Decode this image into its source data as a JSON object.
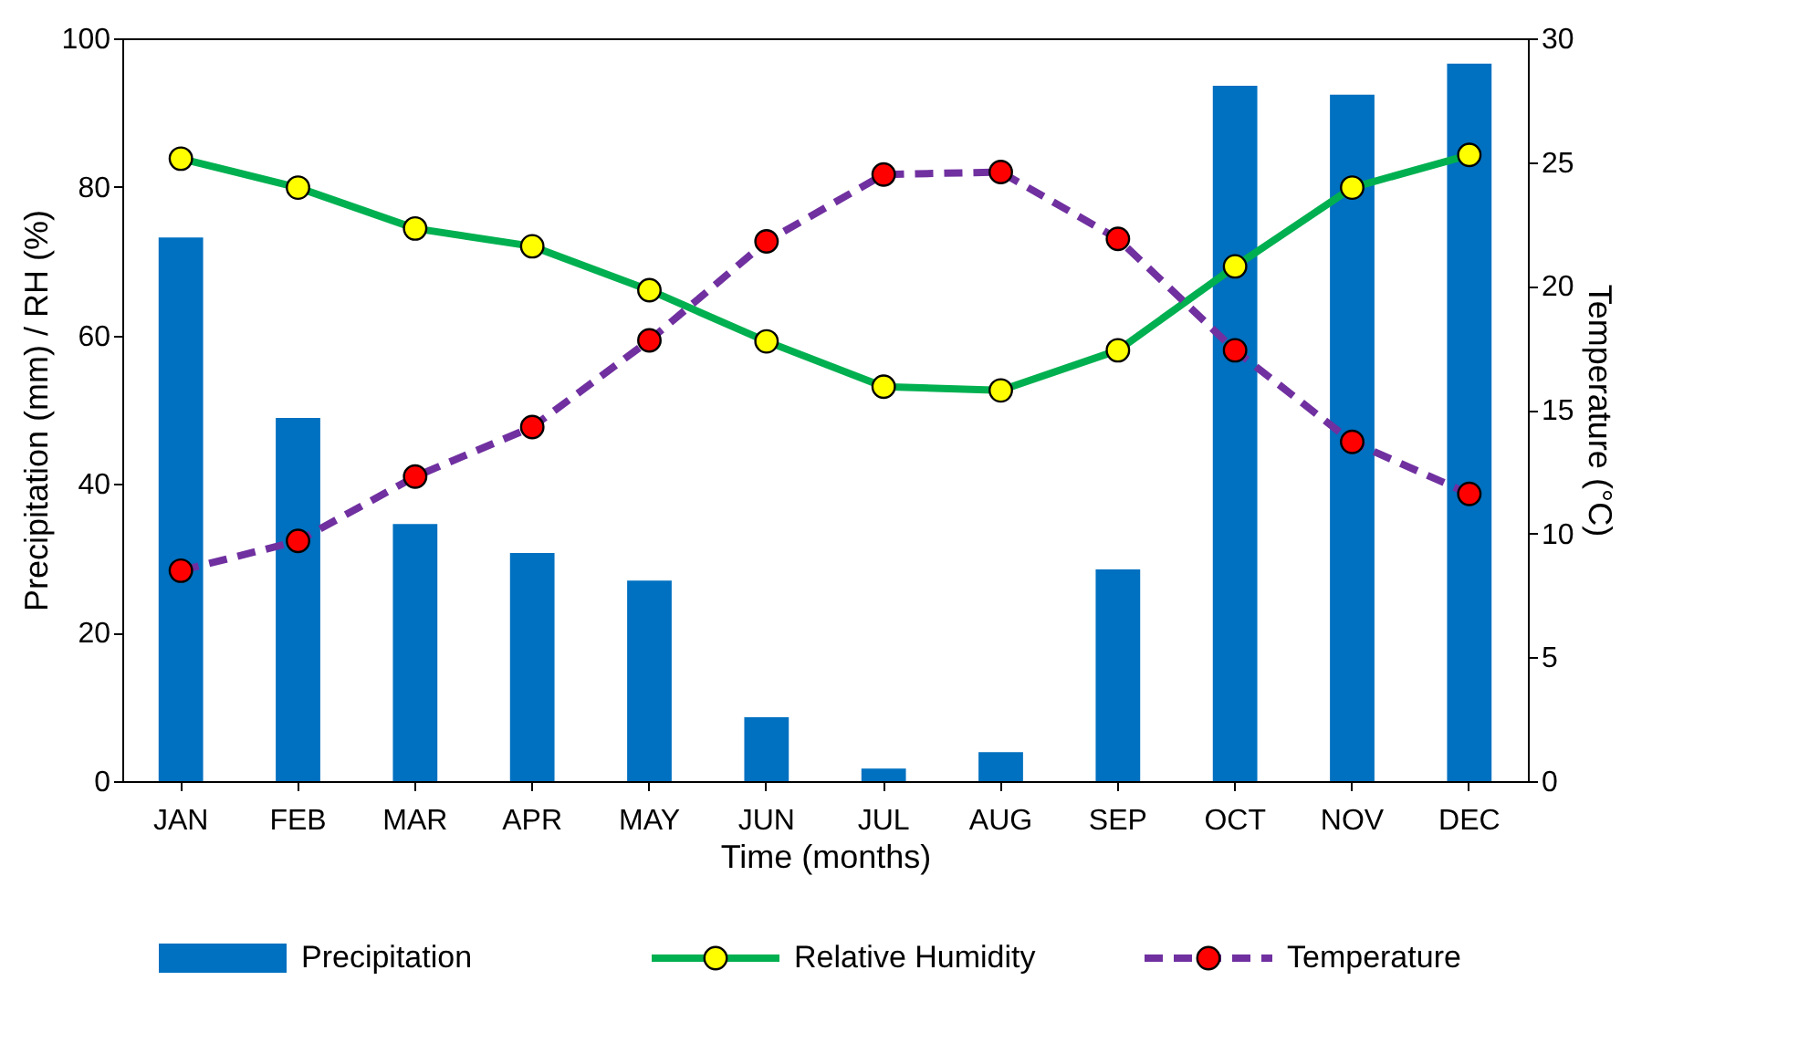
{
  "chart_data": {
    "type": "bar",
    "xlabel": "Time (months)",
    "ylabel": "Precipitation (mm) / RH (%)",
    "y2label": "Temperature (°C)",
    "categories": [
      "JAN",
      "FEB",
      "MAR",
      "APR",
      "MAY",
      "JUN",
      "JUL",
      "AUG",
      "SEP",
      "OCT",
      "NOV",
      "DEC"
    ],
    "series": [
      {
        "name": "Precipitation",
        "color": "#0070c0",
        "values": [
          73.2,
          48.9,
          34.6,
          30.7,
          27.0,
          8.6,
          1.7,
          3.9,
          28.5,
          93.6,
          92.4,
          96.6
        ]
      },
      {
        "name": "Relative Humidity",
        "type": "line",
        "color": "#00b050",
        "line_style": "solid",
        "marker": "circle",
        "values": [
          83.8,
          79.9,
          74.4,
          72.0,
          66.1,
          59.2,
          53.1,
          52.6,
          58.0,
          69.3,
          79.9,
          84.3
        ]
      },
      {
        "name": "Temperature",
        "type": "line",
        "axis": "y2",
        "color": "#7030a0",
        "line_style": "dashed",
        "marker": "circle",
        "values": [
          8.5,
          9.7,
          12.3,
          14.3,
          17.8,
          21.8,
          24.5,
          24.6,
          21.9,
          17.4,
          13.7,
          11.6
        ]
      }
    ],
    "ylim": [
      0,
      100
    ],
    "yticks": [
      0,
      20,
      40,
      60,
      80,
      100
    ],
    "y2lim": [
      0,
      30
    ],
    "y2ticks": [
      0,
      5,
      10,
      15,
      20,
      25,
      30
    ],
    "grid": false,
    "legend": "bottom"
  }
}
